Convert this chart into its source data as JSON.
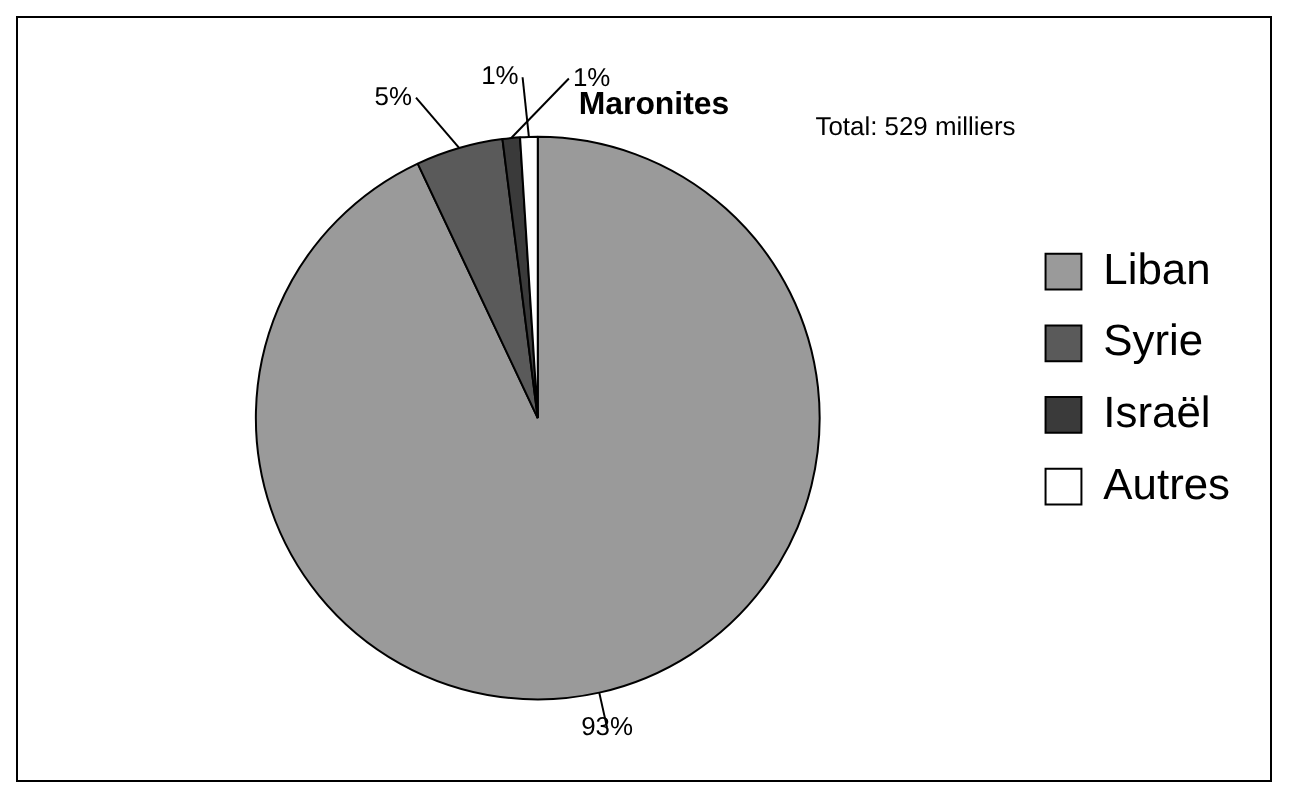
{
  "chart_data": {
    "type": "pie",
    "title": "Maronites",
    "annotations": [
      "Total: 529 milliers"
    ],
    "categories": [
      "Liban",
      "Syrie",
      "Israël",
      "Autres"
    ],
    "values": [
      93,
      5,
      1,
      1
    ],
    "value_labels": [
      "93%",
      "5%",
      "1%",
      "1%"
    ],
    "colors": [
      "#9a9a9a",
      "#5a5a5a",
      "#3a3a3a",
      "#ffffff"
    ],
    "legend": "right"
  }
}
